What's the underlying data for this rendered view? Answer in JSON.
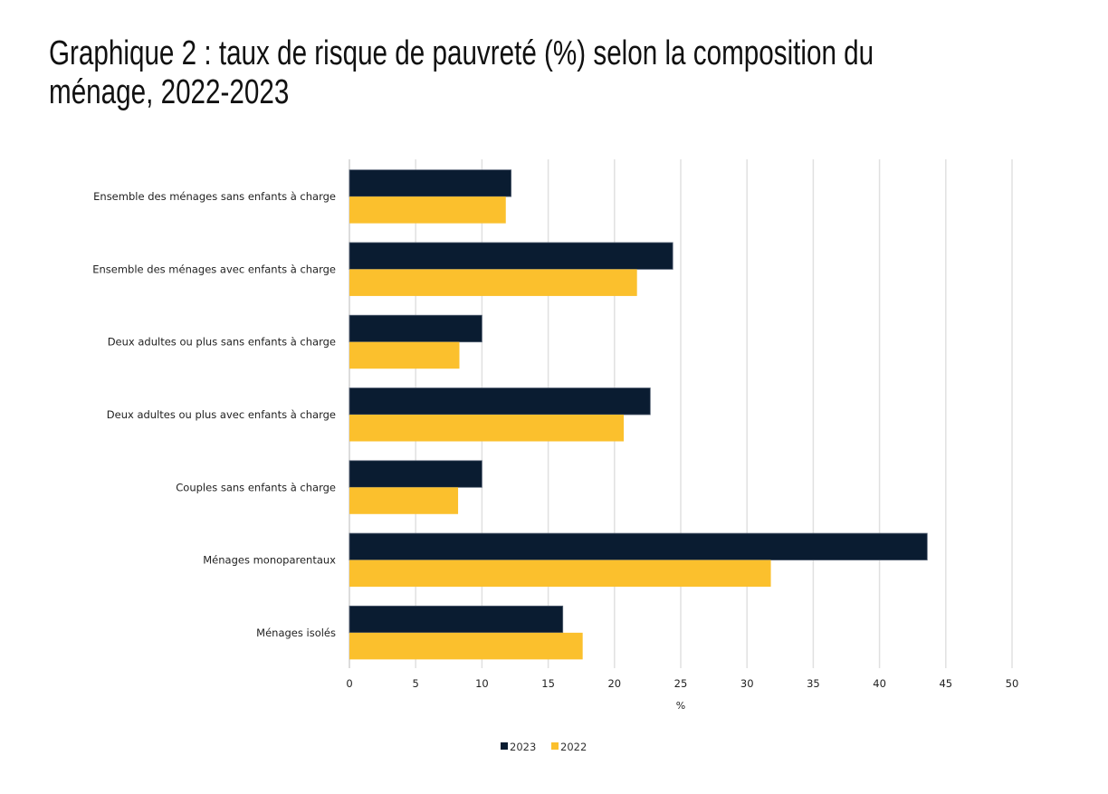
{
  "chart_data": {
    "type": "bar",
    "orientation": "horizontal",
    "title": "Graphique 2 : taux de risque de pauvreté (%) selon la composition du ménage, 2022-2023",
    "title_lines": [
      "Graphique 2 : taux de risque de pauvreté (%) selon la composition du",
      "ménage, 2022-2023"
    ],
    "xlabel": "%",
    "ylabel": "",
    "xlim": [
      0,
      50
    ],
    "xticks": [
      0,
      5,
      10,
      15,
      20,
      25,
      30,
      35,
      40,
      45,
      50
    ],
    "grid": true,
    "legend_position": "bottom",
    "categories": [
      "Ensemble des ménages sans enfants à charge",
      "Ensemble des ménages avec enfants à charge",
      "Deux adultes ou plus sans enfants à charge",
      "Deux adultes ou plus avec enfants à charge",
      "Couples sans enfants à charge",
      "Ménages monoparentaux",
      "Ménages isolés"
    ],
    "series": [
      {
        "name": "2023",
        "color": "#0a1c31",
        "values": [
          12.2,
          24.4,
          10.0,
          22.7,
          10.0,
          43.6,
          16.1
        ]
      },
      {
        "name": "2022",
        "color": "#fbc02d",
        "values": [
          11.8,
          21.7,
          8.3,
          20.7,
          8.2,
          31.8,
          17.6
        ]
      }
    ]
  }
}
